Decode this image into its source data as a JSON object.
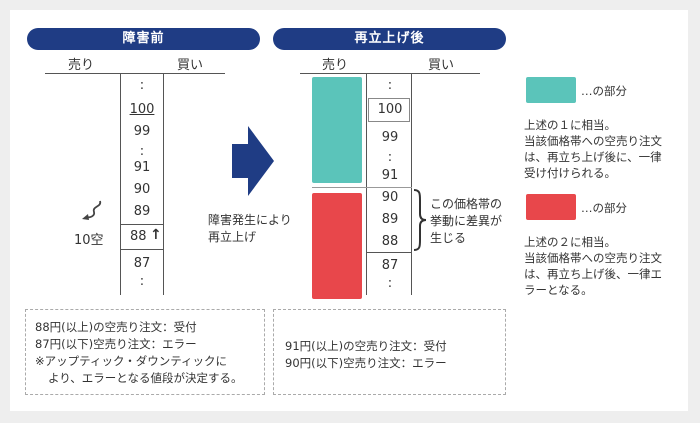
{
  "before": {
    "title": "障害前",
    "sell_header": "売り",
    "buy_header": "買い",
    "dots_top": ":",
    "p100": "100",
    "p99": "99",
    "dots_mid": ":",
    "p91": "91",
    "p90": "90",
    "p89": "89",
    "p88": "88",
    "up_arrow": "↑",
    "p87": "87",
    "dots_bottom": ":",
    "short_label": "10空",
    "note_line1": "88円(以上)の空売り注文：受付",
    "note_line2": "87円(以下)空売り注文：エラー",
    "note_line3": "※アップティック・ダウンティックに",
    "note_line4": "より、エラーとなる値段が決定する。"
  },
  "arrow": {
    "caption_line1": "障害発生により",
    "caption_line2": "再立上げ"
  },
  "after": {
    "title": "再立上げ後",
    "sell_header": "売り",
    "buy_header": "買い",
    "dots_top": ":",
    "p100": "100",
    "p99": "99",
    "dots_mid": ":",
    "p91": "91",
    "p90": "90",
    "p89": "89",
    "p88": "88",
    "p87": "87",
    "dots_bottom": ":",
    "bracket_line1": "この価格帯の",
    "bracket_line2": "挙動に差異が",
    "bracket_line3": "生じる",
    "note_line1": "91円(以上)の空売り注文：受付",
    "note_line2": "90円(以下)空売り注文：エラー"
  },
  "legend": {
    "teal_label": "…の部分",
    "teal_desc1": "上述の１に相当。",
    "teal_desc2": "当該価格帯への空売り注文",
    "teal_desc3": "は、再立ち上げ後に、一律",
    "teal_desc4": "受け付けられる。",
    "red_label": "…の部分",
    "red_desc1": "上述の２に相当。",
    "red_desc2": "当該価格帯への空売り注文",
    "red_desc3": "は、再立ち上げ後、一律エ",
    "red_desc4": "ラーとなる。"
  },
  "colors": {
    "navy": "#1f3c84",
    "teal": "#5bc4ba",
    "red": "#e8474b"
  }
}
